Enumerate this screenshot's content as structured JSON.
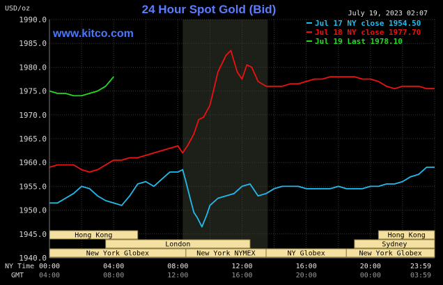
{
  "chart_data": {
    "type": "line",
    "title": "24 Hour Spot Gold (Bid)",
    "website": "www.kitco.com",
    "unit_label": "USD/oz",
    "timestamp": "July 19, 2023 02:07",
    "ylim": [
      1940,
      1990
    ],
    "y_ticks": [
      "1990.0",
      "1985.0",
      "1980.0",
      "1975.0",
      "1970.0",
      "1965.0",
      "1960.0",
      "1955.0",
      "1950.0",
      "1945.0",
      "1940.0"
    ],
    "x_row_labels": {
      "ny": "NY Time",
      "gmt": "GMT"
    },
    "x_ticks_ny": [
      "00:00",
      "04:00",
      "08:00",
      "12:00",
      "16:00",
      "20:00",
      "23:59"
    ],
    "x_ticks_gmt": [
      "04:00",
      "08:00",
      "12:00",
      "16:00",
      "20:00",
      "00:00",
      "03:59"
    ],
    "grid": true,
    "legend_position": "top-right",
    "sessions": [
      {
        "name": "Hong Kong",
        "start": 0.0,
        "end": 5.5,
        "row": 0
      },
      {
        "name": "London",
        "start": 3.5,
        "end": 12.5,
        "row": 1
      },
      {
        "name": "New York Globex",
        "start": 0.0,
        "end": 8.5,
        "row": 2
      },
      {
        "name": "New York NYMEX",
        "start": 8.5,
        "end": 13.5,
        "row": 2
      },
      {
        "name": "NY Globex",
        "start": 13.5,
        "end": 18.5,
        "row": 2
      },
      {
        "name": "Hong Kong",
        "start": 20.5,
        "end": 24.0,
        "row": 0
      },
      {
        "name": "Sydney",
        "start": 19.0,
        "end": 24.0,
        "row": 1
      },
      {
        "name": "New York Globex",
        "start": 18.5,
        "end": 24.0,
        "row": 2
      }
    ],
    "highlight_hours": [
      8.3,
      13.6
    ],
    "series": [
      {
        "name": "Jul 17 NY close 1954.50",
        "color": "#22bbee",
        "x": [
          0,
          0.5,
          1,
          1.5,
          2,
          2.5,
          3,
          3.5,
          4,
          4.5,
          5,
          5.5,
          6,
          6.5,
          7,
          7.5,
          8,
          8.3,
          8.5,
          8.8,
          9,
          9.2,
          9.5,
          9.8,
          10,
          10.5,
          11,
          11.5,
          12,
          12.5,
          13,
          13.5,
          14,
          14.5,
          15,
          15.5,
          16,
          16.5,
          17,
          17.5,
          18,
          18.5,
          19,
          19.5,
          20,
          20.5,
          21,
          21.5,
          22,
          22.5,
          23,
          23.5,
          24
        ],
        "y": [
          1951.5,
          1951.5,
          1952.5,
          1953.5,
          1955,
          1954.5,
          1953,
          1952,
          1951.5,
          1951,
          1953,
          1955.5,
          1956,
          1955,
          1956.5,
          1958,
          1958,
          1958.5,
          1956,
          1952,
          1949.5,
          1948.5,
          1946.5,
          1949,
          1951,
          1952.5,
          1953,
          1953.5,
          1955,
          1955.5,
          1953,
          1953.5,
          1954.5,
          1955,
          1955,
          1955,
          1954.5,
          1954.5,
          1954.5,
          1954.5,
          1955,
          1954.5,
          1954.5,
          1954.5,
          1955,
          1955,
          1955.5,
          1955.5,
          1956,
          1957,
          1957.5,
          1959,
          1959
        ]
      },
      {
        "name": "Jul 18 NY close 1977.70",
        "color": "#ee1111",
        "x": [
          0,
          0.5,
          1,
          1.5,
          2,
          2.5,
          3,
          3.5,
          4,
          4.5,
          5,
          5.5,
          6,
          6.5,
          7,
          7.5,
          8,
          8.3,
          8.6,
          9,
          9.3,
          9.6,
          10,
          10.5,
          11,
          11.3,
          11.7,
          12,
          12.3,
          12.6,
          13,
          13.5,
          14,
          14.5,
          15,
          15.5,
          16,
          16.5,
          17,
          17.5,
          18,
          18.5,
          19,
          19.5,
          20,
          20.5,
          21,
          21.5,
          22,
          22.5,
          23,
          23.5,
          24
        ],
        "y": [
          1959,
          1959.5,
          1959.5,
          1959.5,
          1958.5,
          1958,
          1958.5,
          1959.5,
          1960.5,
          1960.5,
          1961,
          1961,
          1961.5,
          1962,
          1962.5,
          1963,
          1963.5,
          1962,
          1963.5,
          1966,
          1969,
          1969.5,
          1972,
          1979,
          1982.5,
          1983.5,
          1979,
          1977.5,
          1980.5,
          1980,
          1977,
          1976,
          1976,
          1976,
          1976.5,
          1976.5,
          1977,
          1977.5,
          1977.5,
          1978,
          1978,
          1978,
          1978,
          1977.5,
          1977.5,
          1977,
          1976,
          1975.5,
          1976,
          1976,
          1976,
          1975.5,
          1975.5
        ]
      },
      {
        "name": "Jul 19 Last 1978.10",
        "color": "#22dd22",
        "x": [
          0,
          0.5,
          1,
          1.5,
          2,
          2.5,
          3,
          3.5,
          4
        ],
        "y": [
          1975,
          1974.5,
          1974.5,
          1974,
          1974,
          1974.5,
          1975,
          1976,
          1978
        ]
      }
    ]
  }
}
